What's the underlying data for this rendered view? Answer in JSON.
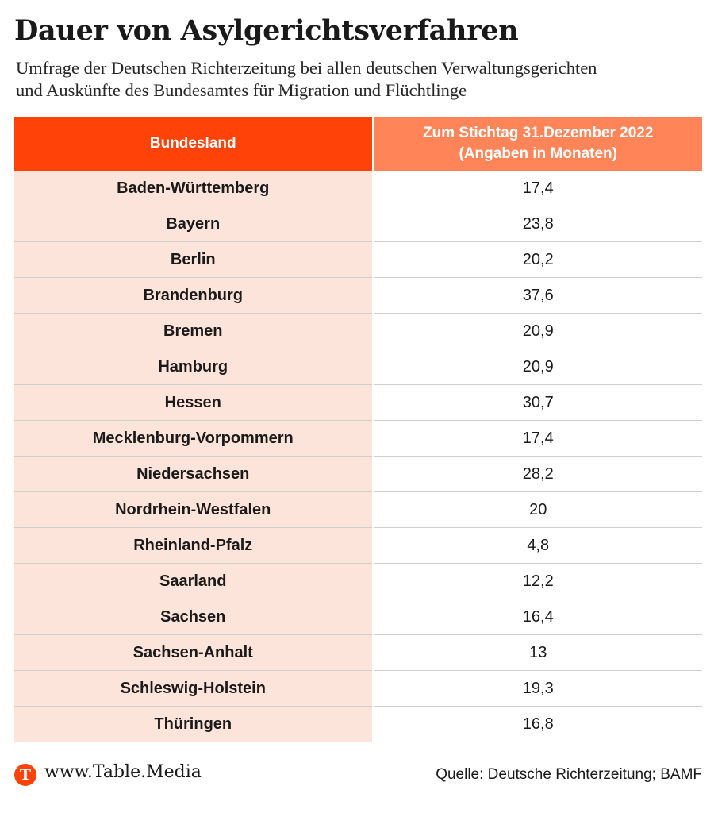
{
  "title": "Dauer von Asylgerichtsverfahren",
  "subtitle": {
    "line1": "Umfrage der Deutschen Richterzeitung bei allen deutschen Verwaltungsgerichten",
    "line2": "und Auskünfte des Bundesamtes für Migration und Flüchtlinge"
  },
  "colors": {
    "header_primary": "#ff4207",
    "header_secondary": "#ff8458",
    "row_highlight": "#fde4da",
    "brand": "#ff4207"
  },
  "chart_data": {
    "type": "table",
    "columns": {
      "state": "Bundesland",
      "value_line1": "Zum Stichtag 31.Dezember 2022",
      "value_line2": "(Angaben in Monaten)"
    },
    "rows": [
      {
        "state": "Baden-Württemberg",
        "value": "17,4"
      },
      {
        "state": "Bayern",
        "value": "23,8"
      },
      {
        "state": "Berlin",
        "value": "20,2"
      },
      {
        "state": "Brandenburg",
        "value": "37,6"
      },
      {
        "state": "Bremen",
        "value": "20,9"
      },
      {
        "state": "Hamburg",
        "value": "20,9"
      },
      {
        "state": "Hessen",
        "value": "30,7"
      },
      {
        "state": "Mecklenburg-Vorpommern",
        "value": "17,4"
      },
      {
        "state": "Niedersachsen",
        "value": "28,2"
      },
      {
        "state": "Nordrhein-Westfalen",
        "value": "20"
      },
      {
        "state": "Rheinland-Pfalz",
        "value": "4,8"
      },
      {
        "state": "Saarland",
        "value": "12,2"
      },
      {
        "state": "Sachsen",
        "value": "16,4"
      },
      {
        "state": "Sachsen-Anhalt",
        "value": "13"
      },
      {
        "state": "Schleswig-Holstein",
        "value": "19,3"
      },
      {
        "state": "Thüringen",
        "value": "16,8"
      }
    ]
  },
  "footer": {
    "logo_letter": "T",
    "logo_icon": "table-media-logo-icon",
    "site": "www.Table.Media",
    "source": "Quelle: Deutsche Richterzeitung; BAMF"
  }
}
